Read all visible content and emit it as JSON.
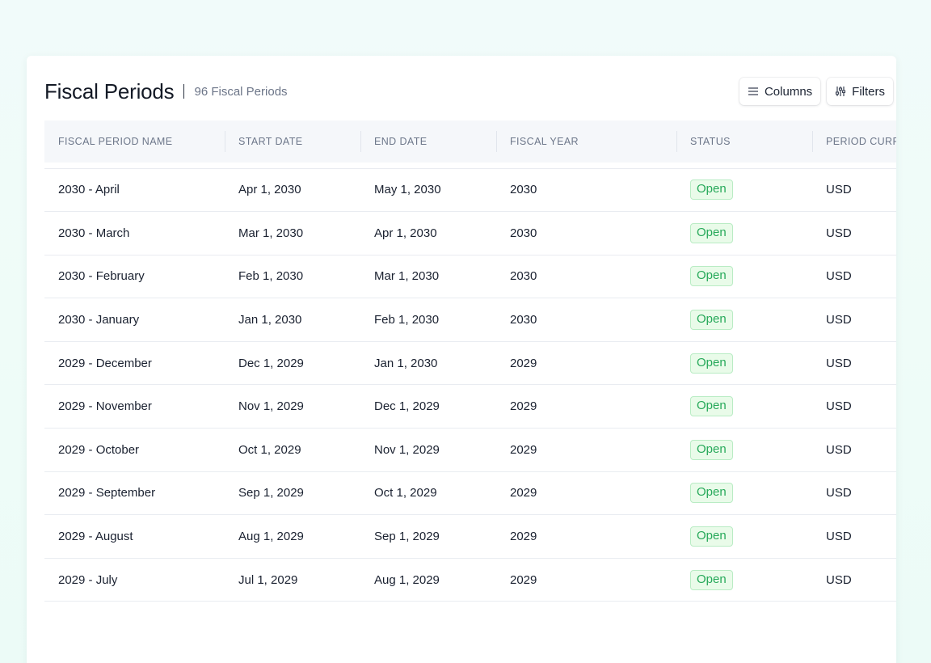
{
  "header": {
    "title": "Fiscal Periods",
    "count_label": "96 Fiscal Periods",
    "columns_button": "Columns",
    "filters_button": "Filters"
  },
  "icons": {
    "columns": "list-lines-icon",
    "filters": "sliders-icon"
  },
  "colors": {
    "status_open_text": "#27a95a",
    "status_open_bg": "#e9fbe9"
  },
  "table": {
    "columns": [
      "FISCAL PERIOD NAME",
      "START DATE",
      "END DATE",
      "FISCAL YEAR",
      "STATUS",
      "PERIOD CURRENCY"
    ],
    "rows": [
      {
        "name": "2030 - April",
        "start": "Apr 1, 2030",
        "end": "May 1, 2030",
        "year": "2030",
        "status": "Open",
        "currency": "USD"
      },
      {
        "name": "2030 - March",
        "start": "Mar 1, 2030",
        "end": "Apr 1, 2030",
        "year": "2030",
        "status": "Open",
        "currency": "USD"
      },
      {
        "name": "2030 - February",
        "start": "Feb 1, 2030",
        "end": "Mar 1, 2030",
        "year": "2030",
        "status": "Open",
        "currency": "USD"
      },
      {
        "name": "2030 - January",
        "start": "Jan 1, 2030",
        "end": "Feb 1, 2030",
        "year": "2030",
        "status": "Open",
        "currency": "USD"
      },
      {
        "name": "2029 - December",
        "start": "Dec 1, 2029",
        "end": "Jan 1, 2030",
        "year": "2029",
        "status": "Open",
        "currency": "USD"
      },
      {
        "name": "2029 - November",
        "start": "Nov 1, 2029",
        "end": "Dec 1, 2029",
        "year": "2029",
        "status": "Open",
        "currency": "USD"
      },
      {
        "name": "2029 - October",
        "start": "Oct 1, 2029",
        "end": "Nov 1, 2029",
        "year": "2029",
        "status": "Open",
        "currency": "USD"
      },
      {
        "name": "2029 - September",
        "start": "Sep 1, 2029",
        "end": "Oct 1, 2029",
        "year": "2029",
        "status": "Open",
        "currency": "USD"
      },
      {
        "name": "2029 - August",
        "start": "Aug 1, 2029",
        "end": "Sep 1, 2029",
        "year": "2029",
        "status": "Open",
        "currency": "USD"
      },
      {
        "name": "2029 - July",
        "start": "Jul 1, 2029",
        "end": "Aug 1, 2029",
        "year": "2029",
        "status": "Open",
        "currency": "USD"
      }
    ]
  }
}
